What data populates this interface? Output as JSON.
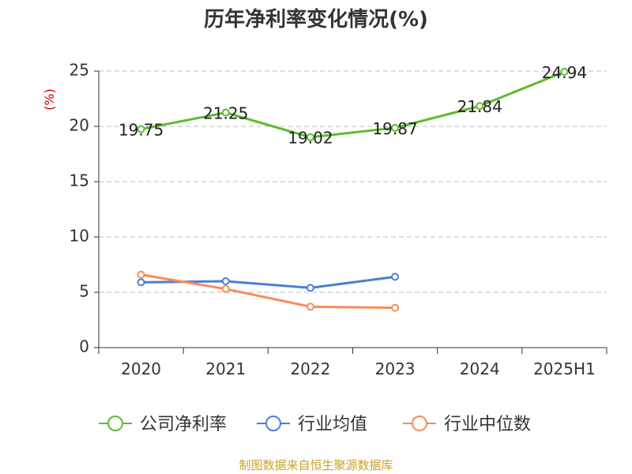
{
  "chart_data": {
    "type": "line",
    "title": "历年净利率变化情况(%)",
    "ylabel": "(%)",
    "xlabel": "",
    "categories": [
      "2020",
      "2021",
      "2022",
      "2023",
      "2024",
      "2025H1"
    ],
    "ylim": [
      0,
      25
    ],
    "yticks": [
      0,
      5,
      10,
      15,
      20,
      25
    ],
    "grid": true,
    "legend_position": "bottom",
    "series": [
      {
        "name": "公司净利率",
        "color": "#5dbb2f",
        "values": [
          19.75,
          21.25,
          19.02,
          19.87,
          21.84,
          24.94
        ],
        "labels": [
          "19.75",
          "21.25",
          "19.02",
          "19.87",
          "21.84",
          "24.94"
        ]
      },
      {
        "name": "行业均值",
        "color": "#4a7fd6",
        "values": [
          5.9,
          6.0,
          5.4,
          6.4,
          null,
          null
        ]
      },
      {
        "name": "行业中位数",
        "color": "#f58c5a",
        "values": [
          6.6,
          5.3,
          3.7,
          3.6,
          null,
          null
        ]
      }
    ]
  },
  "source": "制图数据来自恒生聚源数据库"
}
